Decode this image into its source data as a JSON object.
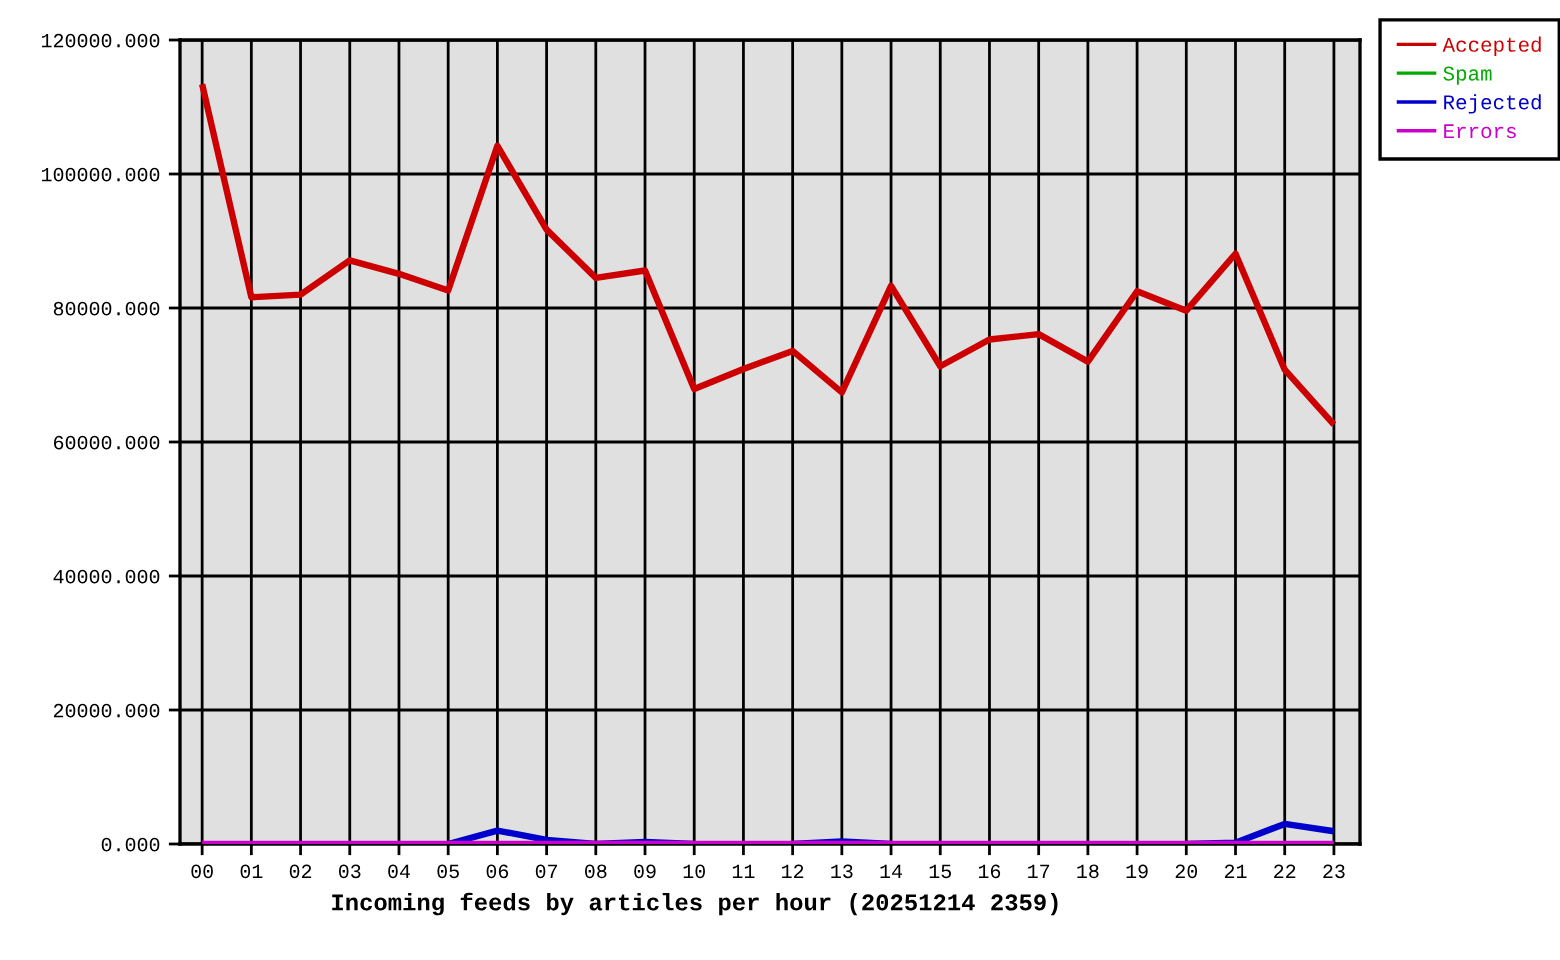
{
  "chart_data": {
    "type": "line",
    "title": "Incoming feeds by articles per hour (20251214 2359)",
    "categories": [
      "00",
      "01",
      "02",
      "03",
      "04",
      "05",
      "06",
      "07",
      "08",
      "09",
      "10",
      "11",
      "12",
      "13",
      "14",
      "15",
      "16",
      "17",
      "18",
      "19",
      "20",
      "21",
      "22",
      "23"
    ],
    "series": [
      {
        "name": "Accepted",
        "color": "#cc0000",
        "values": [
          113400,
          81600,
          82000,
          87100,
          85100,
          82600,
          104200,
          91700,
          84500,
          85600,
          67900,
          70900,
          73600,
          67400,
          83300,
          71300,
          75300,
          76100,
          72000,
          82500,
          79600,
          88100,
          70800,
          62600
        ]
      },
      {
        "name": "Spam",
        "color": "#00aa00",
        "values": [
          null,
          null,
          null,
          null,
          null,
          null,
          null,
          null,
          null,
          null,
          null,
          null,
          null,
          null,
          null,
          null,
          null,
          null,
          null,
          null,
          null,
          null,
          null,
          null
        ]
      },
      {
        "name": "Rejected",
        "color": "#0000cc",
        "values": [
          null,
          null,
          null,
          null,
          null,
          0,
          2000,
          600,
          0,
          300,
          0,
          null,
          0,
          400,
          0,
          null,
          null,
          null,
          null,
          null,
          0,
          200,
          3000,
          1900
        ]
      },
      {
        "name": "Errors",
        "color": "#cc00cc",
        "values": [
          0,
          0,
          0,
          0,
          0,
          0,
          0,
          0,
          0,
          0,
          0,
          0,
          0,
          0,
          0,
          0,
          0,
          0,
          0,
          0,
          0,
          0,
          0,
          0
        ]
      }
    ],
    "ylim": [
      0,
      120000
    ],
    "yticks": [
      {
        "value": 0,
        "label": "0.000"
      },
      {
        "value": 20000,
        "label": "20000.000"
      },
      {
        "value": 40000,
        "label": "40000.000"
      },
      {
        "value": 60000,
        "label": "60000.000"
      },
      {
        "value": 80000,
        "label": "80000.000"
      },
      {
        "value": 100000,
        "label": "100000.000"
      },
      {
        "value": 120000,
        "label": "120000.000"
      }
    ],
    "grid": true,
    "legend": "top right"
  }
}
